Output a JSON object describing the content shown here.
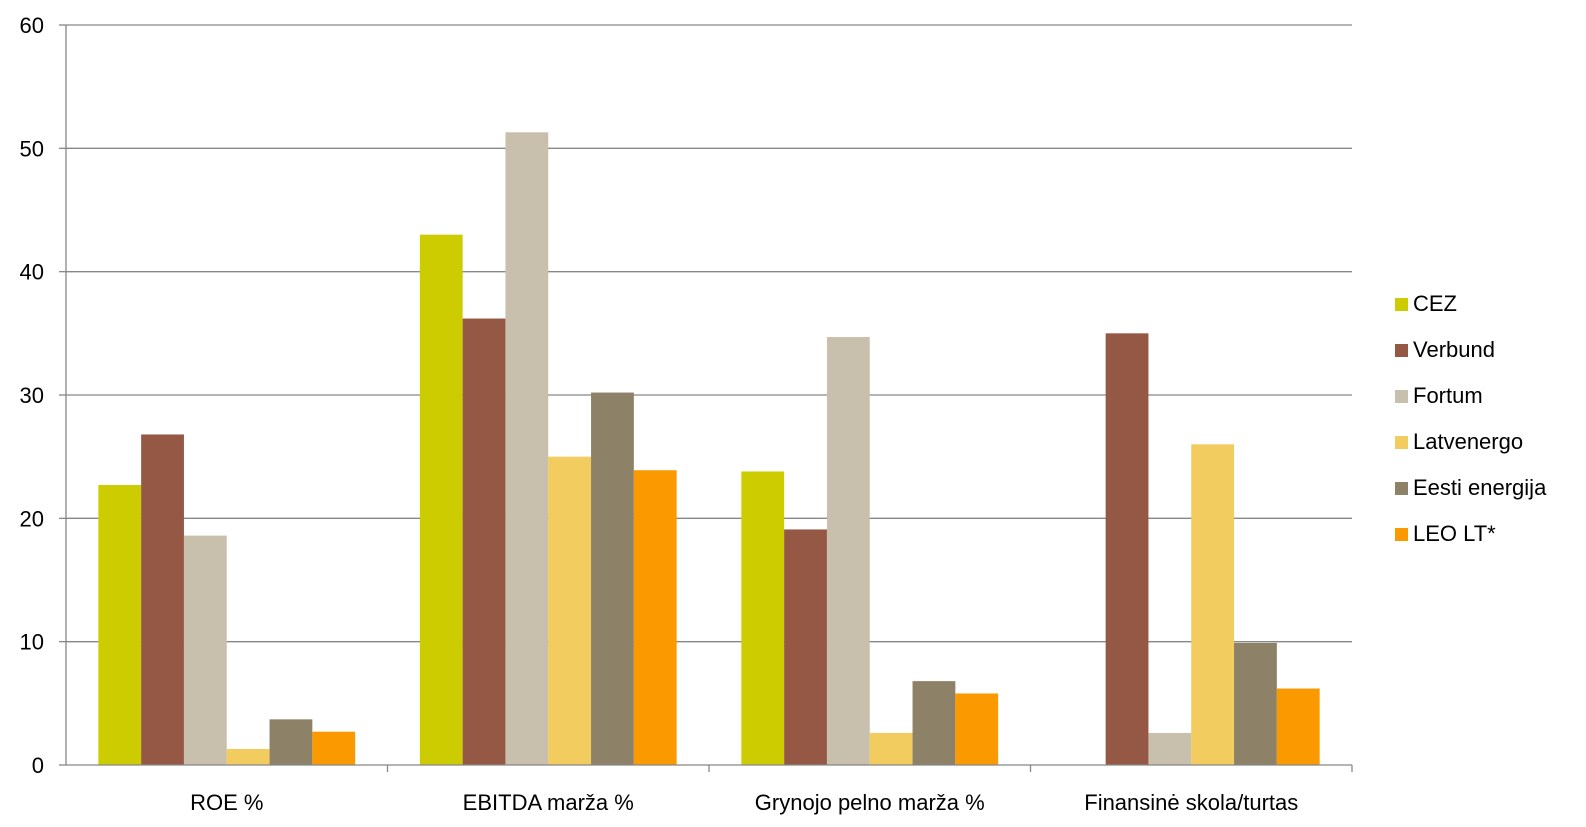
{
  "chart_data": {
    "type": "bar",
    "categories": [
      "ROE %",
      "EBITDA marža %",
      "Grynojo pelno marža %",
      "Finansinė skola/turtas"
    ],
    "series": [
      {
        "name": "CEZ",
        "color": "#CCCC00",
        "values": [
          22.7,
          43.0,
          23.8,
          null
        ]
      },
      {
        "name": "Verbund",
        "color": "#955845",
        "values": [
          26.8,
          36.2,
          19.1,
          35.0
        ]
      },
      {
        "name": "Fortum",
        "color": "#C8BFAC",
        "values": [
          18.6,
          51.3,
          34.7,
          2.6
        ]
      },
      {
        "name": "Latvenergo",
        "color": "#F2CC5F",
        "values": [
          1.3,
          25.0,
          2.6,
          26.0
        ]
      },
      {
        "name": "Eesti energija",
        "color": "#8D8167",
        "values": [
          3.7,
          30.2,
          6.8,
          9.9
        ]
      },
      {
        "name": "LEO LT*",
        "color": "#FB9900",
        "values": [
          2.7,
          23.9,
          5.8,
          6.2
        ]
      }
    ],
    "ylim": [
      0,
      60
    ],
    "yticks": [
      0,
      10,
      20,
      30,
      40,
      50,
      60
    ],
    "grid": true,
    "legend": "right"
  }
}
